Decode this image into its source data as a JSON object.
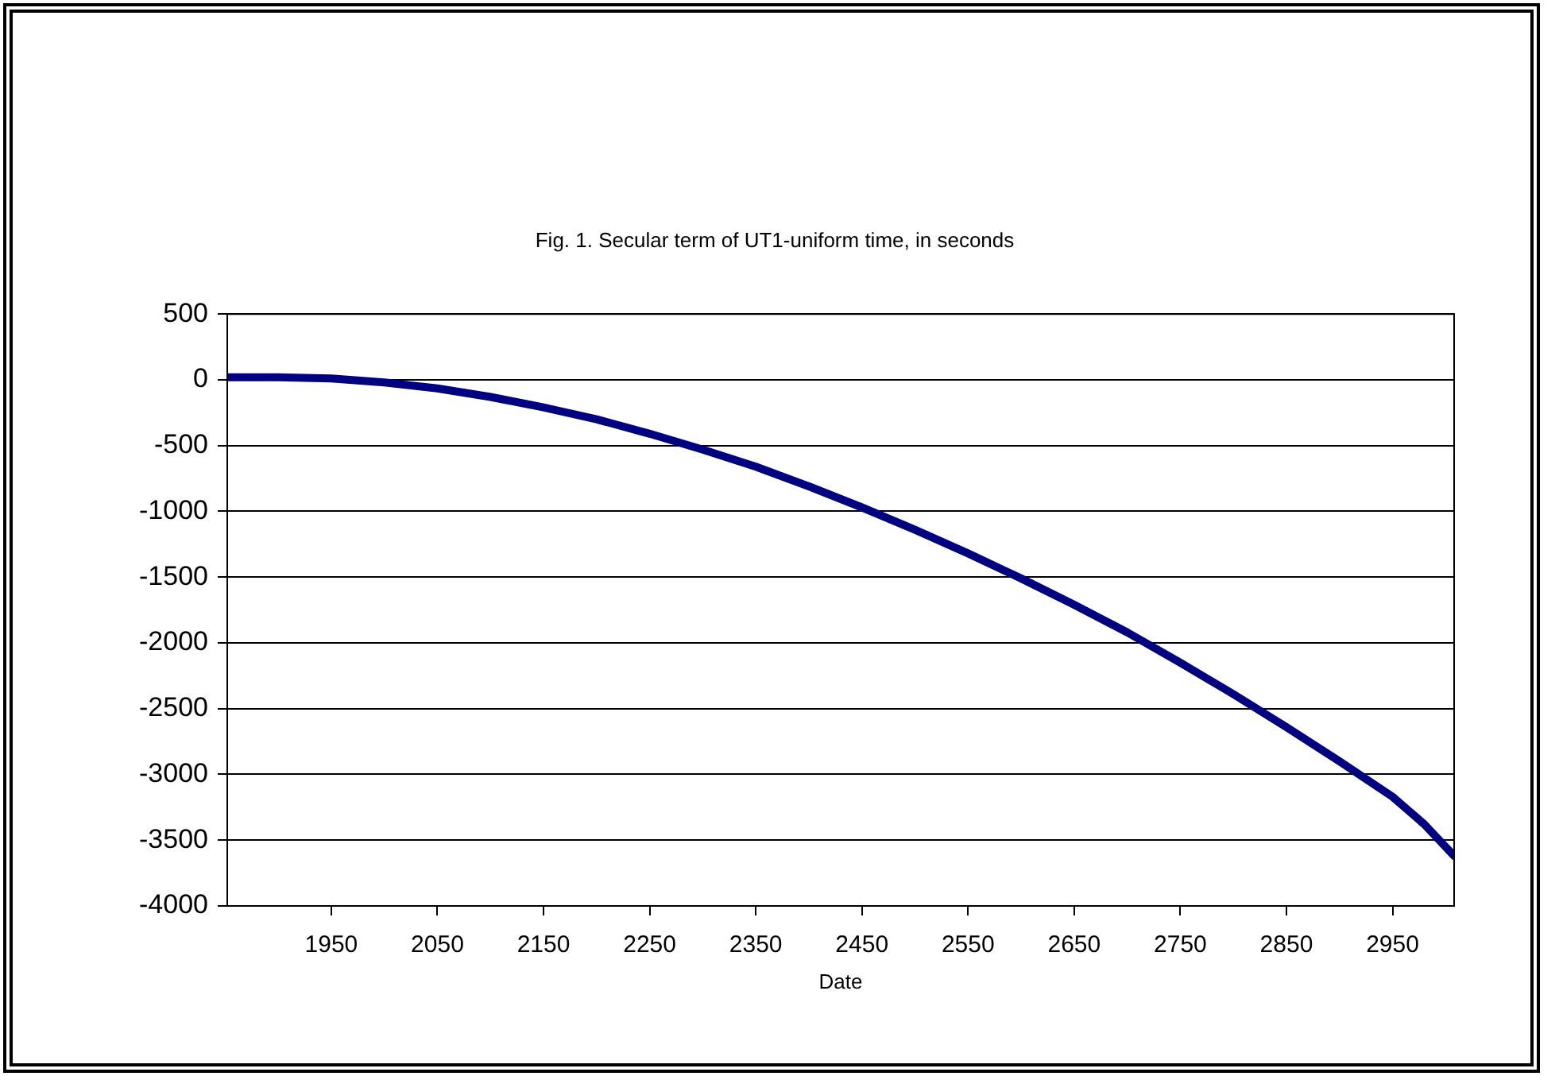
{
  "chart_data": {
    "type": "line",
    "title": "Fig. 1. Secular term of UT1-uniform time, in seconds",
    "xlabel": "Date",
    "x": [
      1852,
      1900,
      1950,
      2000,
      2050,
      2100,
      2150,
      2200,
      2250,
      2300,
      2350,
      2400,
      2450,
      2500,
      2550,
      2600,
      2650,
      2700,
      2750,
      2800,
      2850,
      2900,
      2950,
      2980,
      3008
    ],
    "series": [
      {
        "color": "#000080",
        "values": [
          20,
          20,
          10,
          -20,
          -65,
          -130,
          -210,
          -300,
          -410,
          -530,
          -660,
          -810,
          -970,
          -1140,
          -1320,
          -1510,
          -1710,
          -1920,
          -2150,
          -2390,
          -2640,
          -2900,
          -3170,
          -3380,
          -3620
        ]
      }
    ],
    "xlim": [
      1852,
      3008
    ],
    "xticks": [
      1950,
      2050,
      2150,
      2250,
      2350,
      2450,
      2550,
      2650,
      2750,
      2850,
      2950
    ],
    "ylim": [
      -4000,
      500
    ],
    "yticks": [
      -4000,
      -3500,
      -3000,
      -2500,
      -2000,
      -1500,
      -1000,
      -500,
      0,
      500
    ],
    "grid": "y",
    "legend": false,
    "marker": "none",
    "line_style": "solid"
  }
}
